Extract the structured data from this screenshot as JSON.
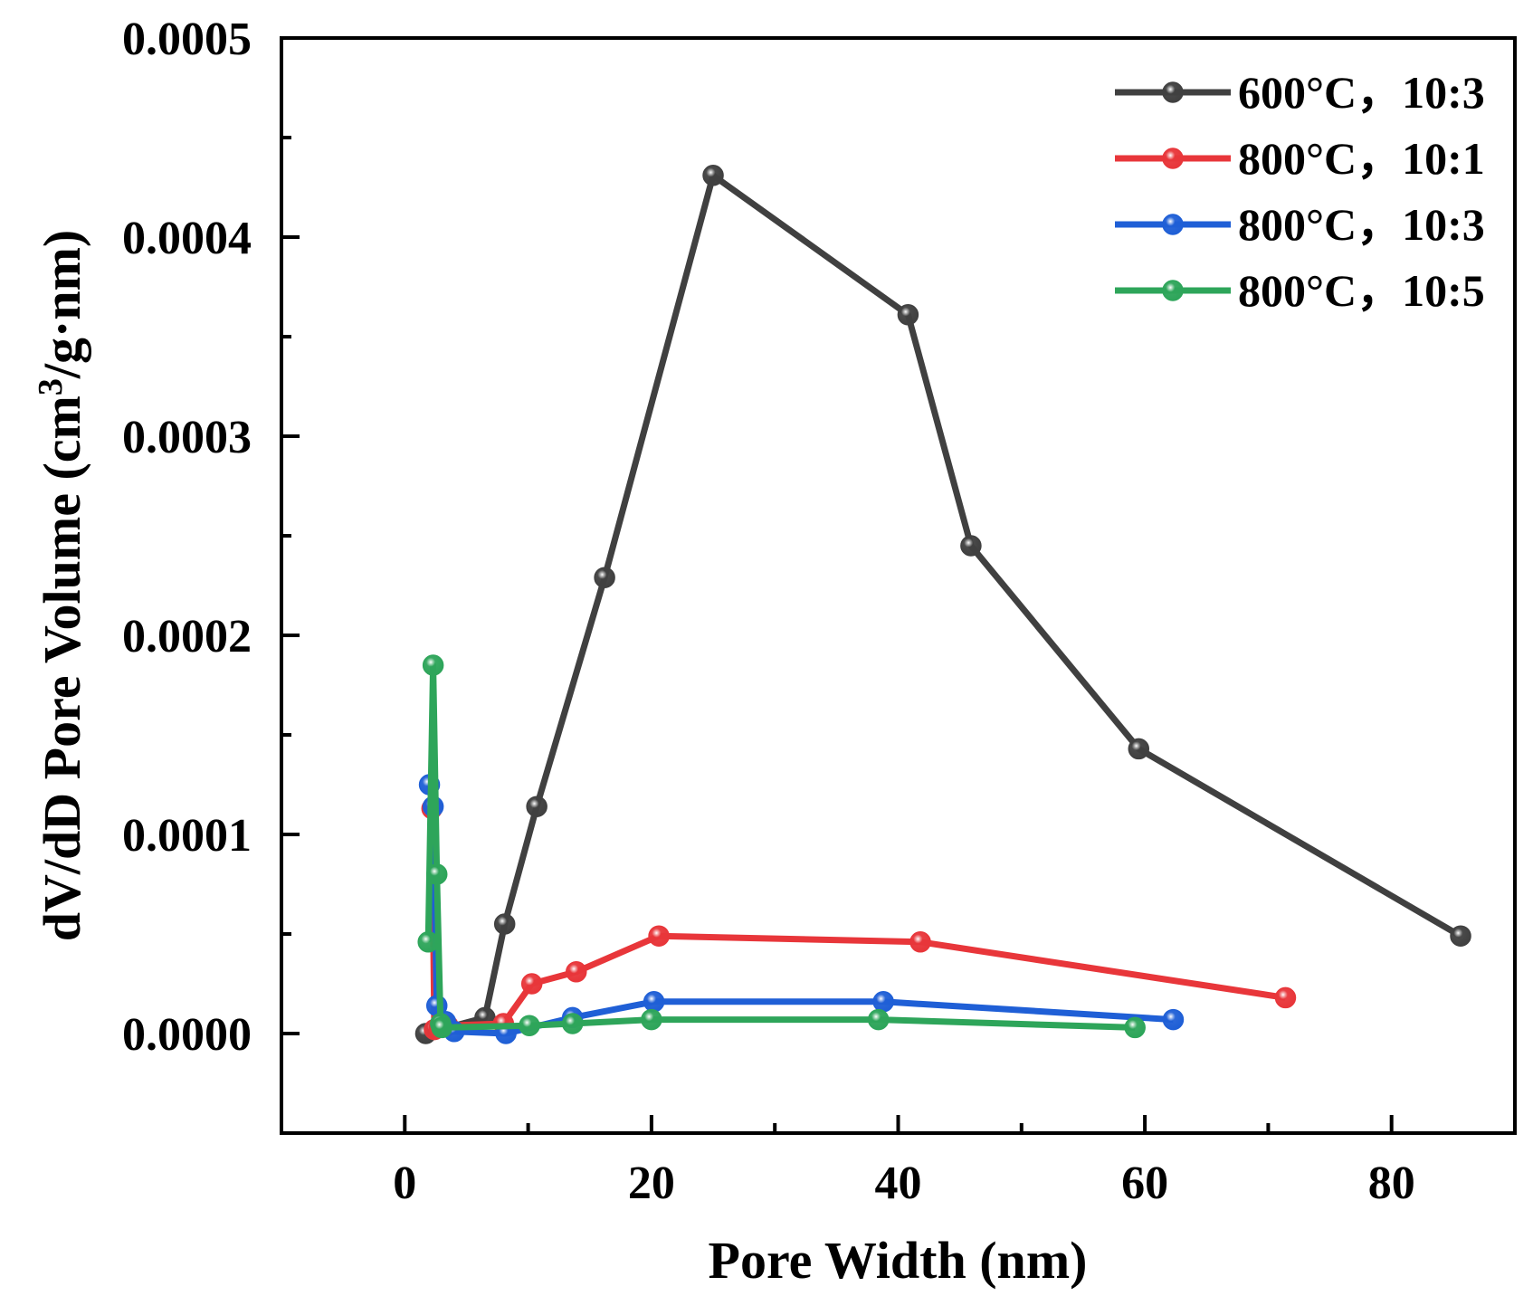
{
  "chart_data": {
    "type": "line",
    "xlabel": "Pore Width (nm)",
    "ylabel_main": "dV/dD Pore Volume (cm",
    "ylabel_sup": "3",
    "ylabel_tail": "/g·nm)",
    "xlim": [
      -10,
      90
    ],
    "ylim": [
      -5e-05,
      0.0005
    ],
    "xticks": [
      0,
      20,
      40,
      60,
      80
    ],
    "xtick_labels": [
      "0",
      "20",
      "40",
      "60",
      "80"
    ],
    "yticks": [
      0.0,
      0.0001,
      0.0002,
      0.0003,
      0.0004,
      0.0005
    ],
    "ytick_labels": [
      "0.0000",
      "0.0001",
      "0.0002",
      "0.0003",
      "0.0004",
      "0.0005"
    ],
    "legend_position": "top-right",
    "series": [
      {
        "name": "600°C，10:3",
        "color": "#404040",
        "x": [
          1.7,
          6.5,
          8.1,
          10.7,
          16.2,
          25.0,
          40.8,
          45.9,
          59.5,
          85.6
        ],
        "y": [
          0.0,
          8e-06,
          5.5e-05,
          0.000114,
          0.000229,
          0.000431,
          0.000361,
          0.000245,
          0.000143,
          4.9e-05
        ]
      },
      {
        "name": "800°C，10:1",
        "color": "#e8363a",
        "x": [
          2.2,
          2.4,
          2.8,
          3.5,
          8.0,
          10.3,
          13.9,
          20.6,
          41.8,
          71.4
        ],
        "y": [
          0.000113,
          2e-06,
          3e-06,
          4e-06,
          5e-06,
          2.5e-05,
          3.1e-05,
          4.9e-05,
          4.6e-05,
          1.8e-05
        ]
      },
      {
        "name": "800°C，10:3",
        "color": "#1f5fd6",
        "x": [
          2.0,
          2.3,
          2.6,
          3.3,
          4.0,
          8.2,
          13.6,
          20.2,
          38.8,
          62.3
        ],
        "y": [
          0.000125,
          0.000114,
          1.4e-05,
          6e-06,
          1e-06,
          0.0,
          8e-06,
          1.6e-05,
          1.6e-05,
          7e-06
        ]
      },
      {
        "name": "800°C，10:5",
        "color": "#2ea55a",
        "x": [
          1.9,
          2.3,
          2.6,
          2.9,
          3.0,
          10.1,
          13.6,
          20.0,
          38.4,
          59.2
        ],
        "y": [
          4.6e-05,
          0.000185,
          8e-05,
          5e-06,
          3e-06,
          4e-06,
          5e-06,
          7e-06,
          7e-06,
          3e-06
        ]
      }
    ]
  }
}
